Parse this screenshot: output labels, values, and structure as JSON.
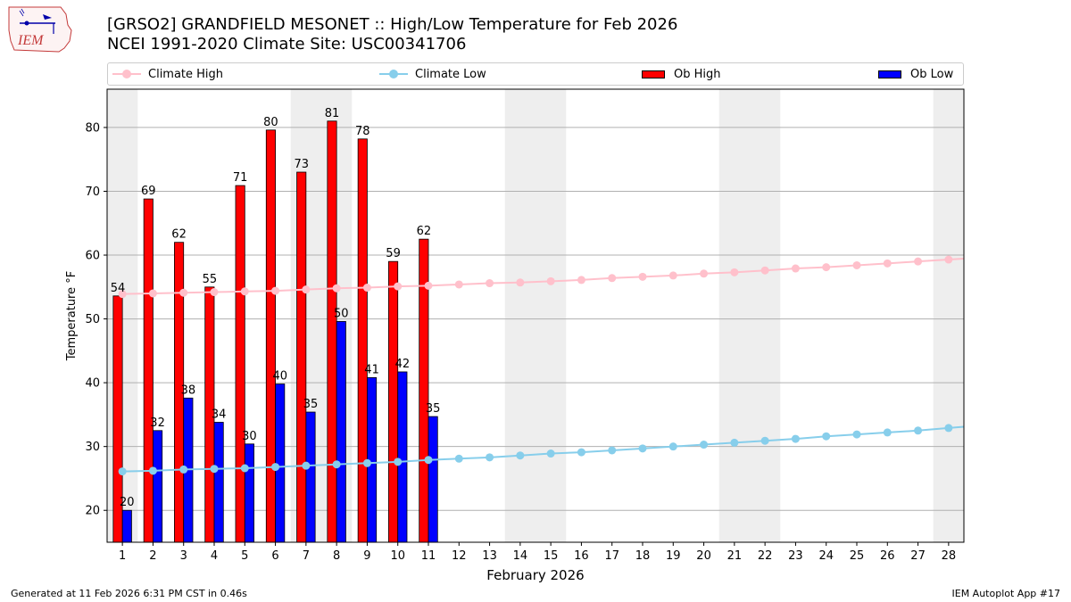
{
  "header": {
    "logo_text": "IEM",
    "title_line1": "[GRSO2] GRANDFIELD MESONET :: High/Low Temperature for Feb 2026",
    "title_line2": "NCEI 1991-2020 Climate Site: USC00341706"
  },
  "legend": {
    "climate_high": "Climate High",
    "climate_low": "Climate Low",
    "ob_high": "Ob High",
    "ob_low": "Ob Low"
  },
  "colors": {
    "climate_high": "#ffc0cb",
    "climate_low": "#87ceeb",
    "ob_high": "#ff0000",
    "ob_low": "#0000ff",
    "weekend_band": "#eeeeee",
    "grid": "#b0b0b0"
  },
  "footer": {
    "generated": "Generated at 11 Feb 2026 6:31 PM CST in 0.46s",
    "app": "IEM Autoplot App #17"
  },
  "chart_data": {
    "type": "bar",
    "xlabel": "February 2026",
    "ylabel": "Temperature °F",
    "ylim": [
      15,
      86
    ],
    "yticks": [
      20,
      30,
      40,
      50,
      60,
      70,
      80
    ],
    "grid": true,
    "legend_position": "top",
    "weekend_days": [
      1,
      7,
      8,
      14,
      15,
      21,
      22,
      28
    ],
    "days": [
      1,
      2,
      3,
      4,
      5,
      6,
      7,
      8,
      9,
      10,
      11,
      12,
      13,
      14,
      15,
      16,
      17,
      18,
      19,
      20,
      21,
      22,
      23,
      24,
      25,
      26,
      27,
      28
    ],
    "ob_high": [
      53.6,
      68.8,
      62.0,
      55.0,
      70.9,
      79.6,
      73.0,
      81.0,
      78.2,
      59.0,
      62.5
    ],
    "ob_high_labels": [
      "54",
      "69",
      "62",
      "55",
      "71",
      "80",
      "73",
      "81",
      "78",
      "59",
      "62"
    ],
    "ob_low": [
      20.0,
      32.5,
      37.6,
      33.8,
      30.4,
      39.8,
      35.4,
      49.6,
      40.8,
      41.7,
      34.7
    ],
    "ob_low_labels": [
      "20",
      "32",
      "38",
      "34",
      "30",
      "40",
      "35",
      "50",
      "41",
      "42",
      "35"
    ],
    "climate_high": [
      53.9,
      54.0,
      54.1,
      54.2,
      54.3,
      54.4,
      54.6,
      54.8,
      54.9,
      55.1,
      55.2,
      55.4,
      55.6,
      55.7,
      55.9,
      56.1,
      56.4,
      56.6,
      56.8,
      57.1,
      57.3,
      57.6,
      57.9,
      58.1,
      58.4,
      58.7,
      59.0,
      59.3
    ],
    "climate_low": [
      26.1,
      26.2,
      26.4,
      26.5,
      26.6,
      26.8,
      27.0,
      27.2,
      27.4,
      27.6,
      27.9,
      28.1,
      28.3,
      28.6,
      28.9,
      29.1,
      29.4,
      29.7,
      30.0,
      30.3,
      30.6,
      30.9,
      31.2,
      31.6,
      31.9,
      32.2,
      32.5,
      32.9
    ]
  }
}
